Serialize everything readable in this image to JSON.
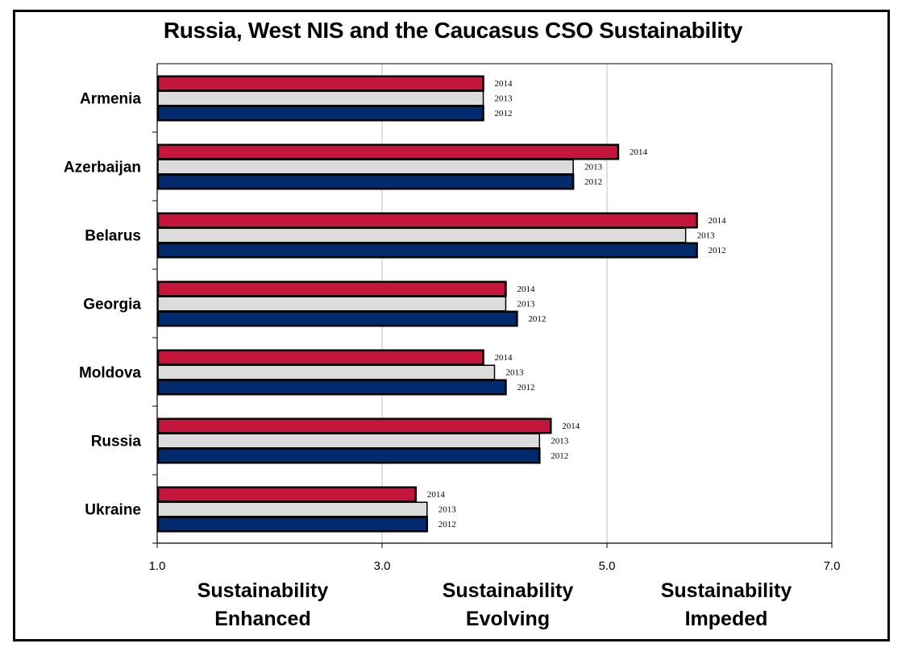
{
  "chart_data": {
    "type": "bar",
    "orientation": "horizontal",
    "title": "Russia, West NIS and the Caucasus CSO Sustainability",
    "categories": [
      "Armenia",
      "Azerbaijan",
      "Belarus",
      "Georgia",
      "Moldova",
      "Russia",
      "Ukraine"
    ],
    "series": [
      {
        "name": "2014",
        "color": "#c4153b",
        "values": [
          3.9,
          5.1,
          5.8,
          4.1,
          3.9,
          4.5,
          3.3
        ]
      },
      {
        "name": "2013",
        "color": "#dcdcdc",
        "values": [
          3.9,
          4.7,
          5.7,
          4.1,
          4.0,
          4.4,
          3.4
        ]
      },
      {
        "name": "2012",
        "color": "#002a6c",
        "values": [
          3.9,
          4.7,
          5.8,
          4.2,
          4.1,
          4.4,
          3.4
        ]
      }
    ],
    "xlim": [
      1.0,
      7.0
    ],
    "xticks": [
      "1.0",
      "3.0",
      "5.0",
      "7.0"
    ],
    "grid": true,
    "xlabel": "",
    "ylabel": "",
    "zones": [
      {
        "line1": "Sustainability",
        "line2": "Enhanced"
      },
      {
        "line1": "Sustainability",
        "line2": "Evolving"
      },
      {
        "line1": "Sustainability",
        "line2": "Impeded"
      }
    ]
  }
}
